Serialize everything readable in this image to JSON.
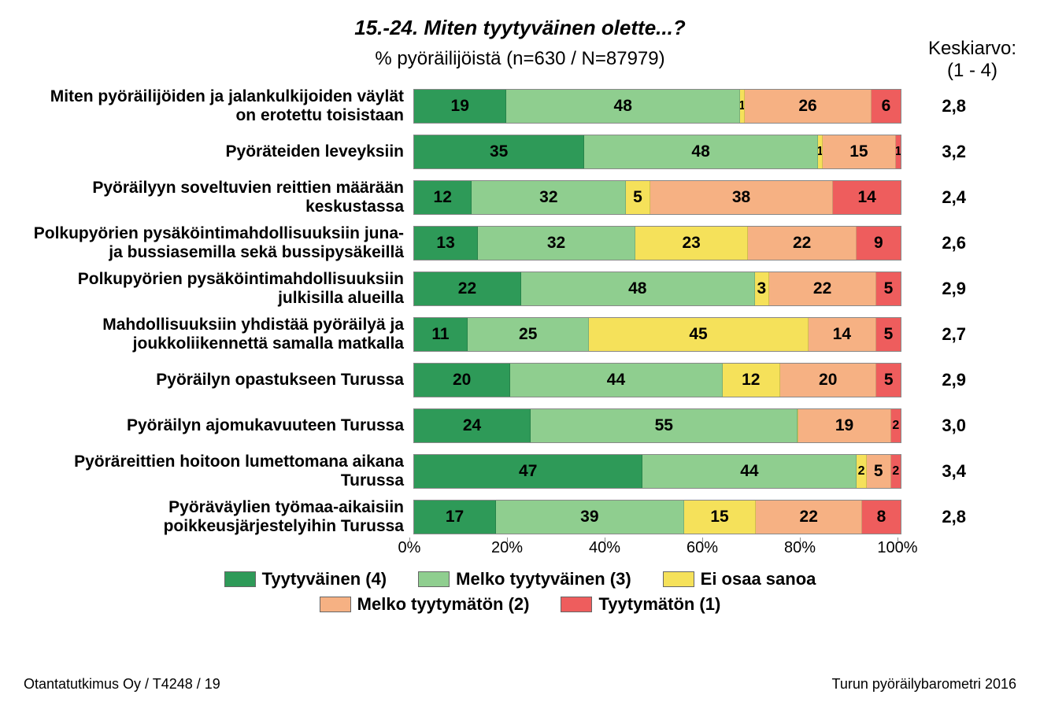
{
  "title": "15.-24. Miten tyytyväinen olette...?",
  "subtitle": "% pyöräilijöistä (n=630 / N=87979)",
  "avg_header_line1": "Keskiarvo:",
  "avg_header_line2": "(1 - 4)",
  "colors": {
    "tyytyvainen": "#2e9a58",
    "melko_tyytyvainen": "#8fce8f",
    "ei_osaa_sanoa": "#f5e15a",
    "melko_tyytymaton": "#f6b183",
    "tyytymaton": "#ee5d5d",
    "background": "#ffffff"
  },
  "legend": [
    {
      "label": "Tyytyväinen (4)",
      "color_key": "tyytyvainen"
    },
    {
      "label": "Melko tyytyväinen (3)",
      "color_key": "melko_tyytyvainen"
    },
    {
      "label": "Ei osaa sanoa",
      "color_key": "ei_osaa_sanoa"
    },
    {
      "label": "Melko tyytymätön (2)",
      "color_key": "melko_tyytymaton"
    },
    {
      "label": "Tyytymätön (1)",
      "color_key": "tyytymaton"
    }
  ],
  "axis": {
    "ticks": [
      0,
      20,
      40,
      60,
      80,
      100
    ],
    "suffix": "%"
  },
  "rows": [
    {
      "label": "Miten pyöräilijöiden ja jalankulkijoiden väylät on erotettu toisistaan",
      "values": [
        19,
        48,
        1,
        26,
        6
      ],
      "avg": "2,8"
    },
    {
      "label": "Pyöräteiden leveyksiin",
      "values": [
        35,
        48,
        1,
        15,
        1
      ],
      "avg": "3,2"
    },
    {
      "label": "Pyöräilyyn soveltuvien reittien määrään keskustassa",
      "values": [
        12,
        32,
        5,
        38,
        14
      ],
      "avg": "2,4"
    },
    {
      "label": "Polkupyörien pysäköintimahdollisuuksiin juna- ja bussiasemilla sekä bussipysäkeillä",
      "values": [
        13,
        32,
        23,
        22,
        9
      ],
      "avg": "2,6"
    },
    {
      "label": "Polkupyörien pysäköintimahdollisuuksiin julkisilla alueilla",
      "values": [
        22,
        48,
        3,
        22,
        5
      ],
      "avg": "2,9"
    },
    {
      "label": "Mahdollisuuksiin yhdistää pyöräilyä ja joukkoliikennettä samalla matkalla",
      "values": [
        11,
        25,
        45,
        14,
        5
      ],
      "avg": "2,7"
    },
    {
      "label": "Pyöräilyn opastukseen Turussa",
      "values": [
        20,
        44,
        12,
        20,
        5
      ],
      "avg": "2,9"
    },
    {
      "label": "Pyöräilyn ajomukavuuteen Turussa",
      "values": [
        24,
        55,
        0,
        19,
        2
      ],
      "avg": "3,0"
    },
    {
      "label": "Pyöräreittien hoitoon lumettomana aikana Turussa",
      "values": [
        47,
        44,
        2,
        5,
        2
      ],
      "avg": "3,4"
    },
    {
      "label": "Pyöräväylien työmaa-aikaisiin poikkeusjärjestelyihin Turussa",
      "values": [
        17,
        39,
        15,
        22,
        8
      ],
      "avg": "2,8"
    }
  ],
  "footer_left": "Otantatutkimus Oy / T4248 / 19",
  "footer_right": "Turun pyöräilybarometri 2016"
}
